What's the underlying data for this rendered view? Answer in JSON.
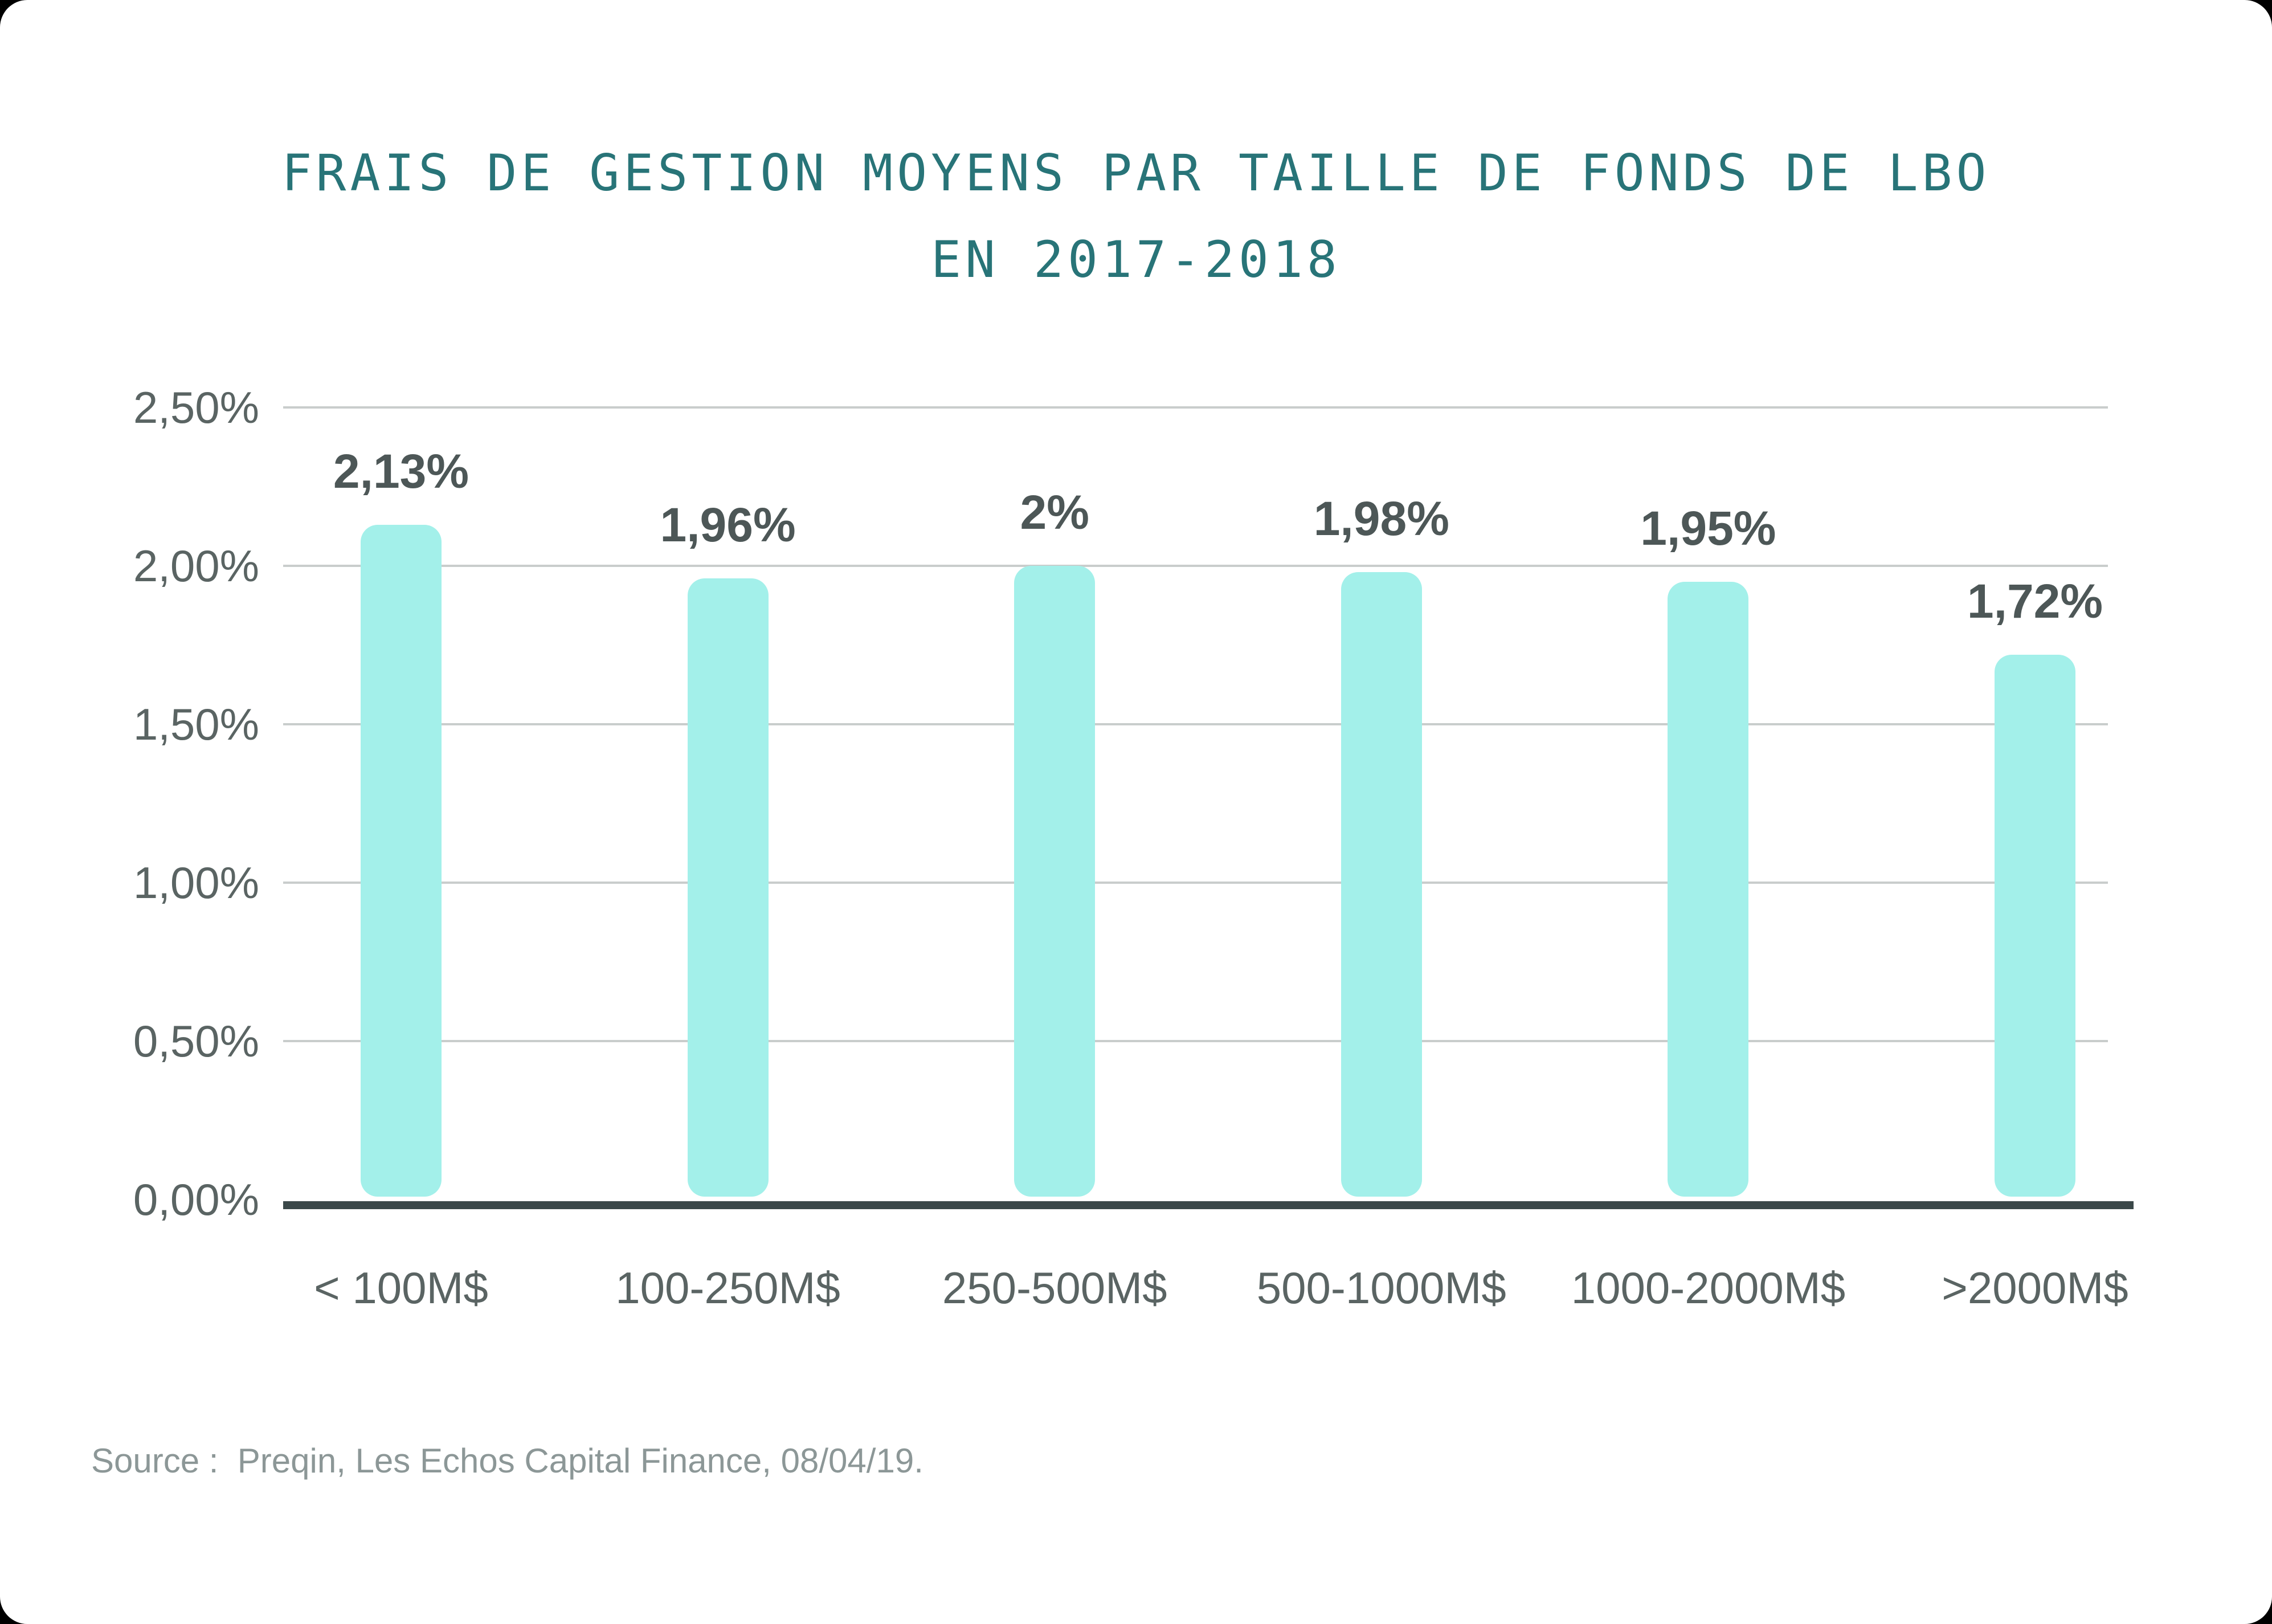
{
  "page": {
    "outer_background": "#000000",
    "card_background": "#FFFFFF"
  },
  "chart_data": {
    "type": "bar",
    "title": "FRAIS DE GESTION MOYENS PAR TAILLE DE FONDS DE LBO EN 2017-2018",
    "title_line1": "FRAIS DE GESTION MOYENS PAR TAILLE DE FONDS DE LBO",
    "title_line2": "EN 2017-2018",
    "categories": [
      "< 100M$",
      "100-250M$",
      "250-500M$",
      "500-1000M$",
      "1000-2000M$",
      ">2000M$"
    ],
    "values": [
      2.13,
      1.96,
      2.0,
      1.98,
      1.95,
      1.72
    ],
    "value_labels": [
      "2,13%",
      "1,96%",
      "2%",
      "1,98%",
      "1,95%",
      "1,72%"
    ],
    "yticks": [
      {
        "value": 2.5,
        "label": "2,50%"
      },
      {
        "value": 2.0,
        "label": "2,00%"
      },
      {
        "value": 1.5,
        "label": "1,50%"
      },
      {
        "value": 1.0,
        "label": "1,00%"
      },
      {
        "value": 0.5,
        "label": "0,50%"
      },
      {
        "value": 0.0,
        "label": "0,00%"
      }
    ],
    "ylim": [
      0,
      2.5
    ],
    "grid": true,
    "legend": "none",
    "xlabel": "",
    "ylabel": ""
  },
  "colors": {
    "title": "#287478",
    "bar_fill": "#A3F0EA",
    "value_label": "#4D5757",
    "tick_label": "#5A6463",
    "gridline": "#C9CDCC",
    "axis_line": "#3B4849",
    "source_text": "#8C9797"
  },
  "source": {
    "text": "Source :  Preqin, Les Echos Capital Finance, 08/04/19."
  }
}
